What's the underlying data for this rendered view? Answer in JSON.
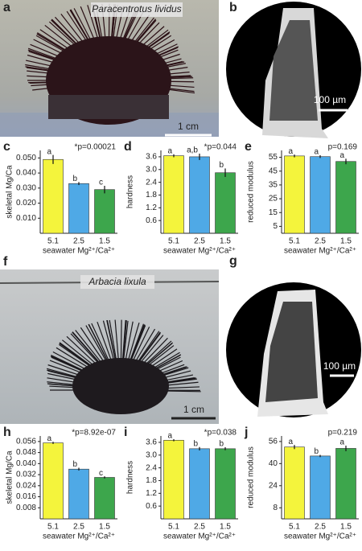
{
  "photos": [
    {
      "letter": "a",
      "species": "Paracentrotus lividus",
      "scale": "1 cm"
    },
    {
      "letter": "b",
      "scale": "100 µm"
    },
    {
      "letter": "f",
      "species": "Arbacia lixula",
      "scale": "1 cm"
    },
    {
      "letter": "g",
      "scale": "100 µm"
    }
  ],
  "chart_data": [
    {
      "type": "bar",
      "panel": "c",
      "ylabel": "skeletal Mg/Ca",
      "xlabel": "seawater Mg²⁺/Ca²⁺",
      "annotation": "*p=0.00021",
      "categories": [
        "5.1",
        "2.5",
        "1.5"
      ],
      "values": [
        0.049,
        0.033,
        0.029
      ],
      "errors": [
        0.003,
        0.001,
        0.0025
      ],
      "letters": [
        "a",
        "b",
        "c"
      ],
      "colors": [
        "#f4f43c",
        "#4fa9e6",
        "#3da64c"
      ],
      "ylim": [
        0,
        0.055
      ],
      "yticks": [
        {
          "value": 0.01,
          "label": "0.010"
        },
        {
          "value": 0.02,
          "label": "0.020"
        },
        {
          "value": 0.03,
          "label": "0.030"
        },
        {
          "value": 0.04,
          "label": "0.040"
        },
        {
          "value": 0.05,
          "label": "0.050"
        }
      ]
    },
    {
      "type": "bar",
      "panel": "d",
      "ylabel": "hardness",
      "xlabel": "seawater Mg²⁺/Ca²⁺",
      "annotation": "*p=0.044",
      "categories": [
        "5.1",
        "2.5",
        "1.5"
      ],
      "values": [
        3.65,
        3.6,
        2.85
      ],
      "errors": [
        0.07,
        0.15,
        0.2
      ],
      "letters": [
        "a",
        "a,b",
        "b"
      ],
      "colors": [
        "#f4f43c",
        "#4fa9e6",
        "#3da64c"
      ],
      "ylim": [
        0,
        3.9
      ],
      "yticks": [
        0.6,
        1.2,
        1.8,
        2.4,
        {
          "value": 3,
          "label": "3.0"
        },
        3.6
      ]
    },
    {
      "type": "bar",
      "panel": "e",
      "ylabel": "reduced modulus",
      "xlabel": "seawater Mg²⁺/Ca²⁺",
      "annotation": "p=0.169",
      "categories": [
        "5.1",
        "2.5",
        "1.5"
      ],
      "values": [
        56,
        55.5,
        52
      ],
      "errors": [
        1,
        1,
        2
      ],
      "letters": [
        "a",
        "a",
        "a"
      ],
      "colors": [
        "#f4f43c",
        "#4fa9e6",
        "#3da64c"
      ],
      "ylim": [
        0,
        60
      ],
      "yticks": [
        5,
        15,
        25,
        35,
        45,
        55
      ]
    },
    {
      "type": "bar",
      "panel": "h",
      "ylabel": "skeletal Mg/Ca",
      "xlabel": "seawater Mg²⁺/Ca²⁺",
      "annotation": "*p=8.92e-07",
      "categories": [
        "5.1",
        "2.5",
        "1.5"
      ],
      "values": [
        0.055,
        0.036,
        0.03
      ],
      "errors": [
        0.0008,
        0.001,
        0.0008
      ],
      "letters": [
        "a",
        "b",
        "c"
      ],
      "colors": [
        "#f4f43c",
        "#4fa9e6",
        "#3da64c"
      ],
      "ylim": [
        0,
        0.06
      ],
      "yticks": [
        0.008,
        0.016,
        0.024,
        0.032,
        {
          "value": 0.04,
          "label": "0.040"
        },
        0.048,
        0.056
      ]
    },
    {
      "type": "bar",
      "panel": "i",
      "ylabel": "hardness",
      "xlabel": "seawater Mg²⁺/Ca²⁺",
      "annotation": "*p=0.038",
      "categories": [
        "5.1",
        "2.5",
        "1.5"
      ],
      "values": [
        3.7,
        3.3,
        3.3
      ],
      "errors": [
        0.05,
        0.08,
        0.07
      ],
      "letters": [
        "a",
        "b",
        "b"
      ],
      "colors": [
        "#f4f43c",
        "#4fa9e6",
        "#3da64c"
      ],
      "ylim": [
        0,
        3.9
      ],
      "yticks": [
        0.6,
        1.2,
        1.8,
        2.4,
        {
          "value": 3,
          "label": "3.0"
        },
        3.6
      ]
    },
    {
      "type": "bar",
      "panel": "j",
      "ylabel": "reduced modulus",
      "xlabel": "seawater Mg²⁺/Ca²⁺",
      "annotation": "p=0.219",
      "categories": [
        "5.1",
        "2.5",
        "1.5"
      ],
      "values": [
        52,
        45.5,
        51
      ],
      "errors": [
        1.5,
        0.8,
        2
      ],
      "letters": [
        "a",
        "b",
        "a"
      ],
      "colors": [
        "#f4f43c",
        "#4fa9e6",
        "#3da64c"
      ],
      "ylim": [
        0,
        60
      ],
      "yticks": [
        8,
        24,
        40,
        56
      ]
    }
  ]
}
